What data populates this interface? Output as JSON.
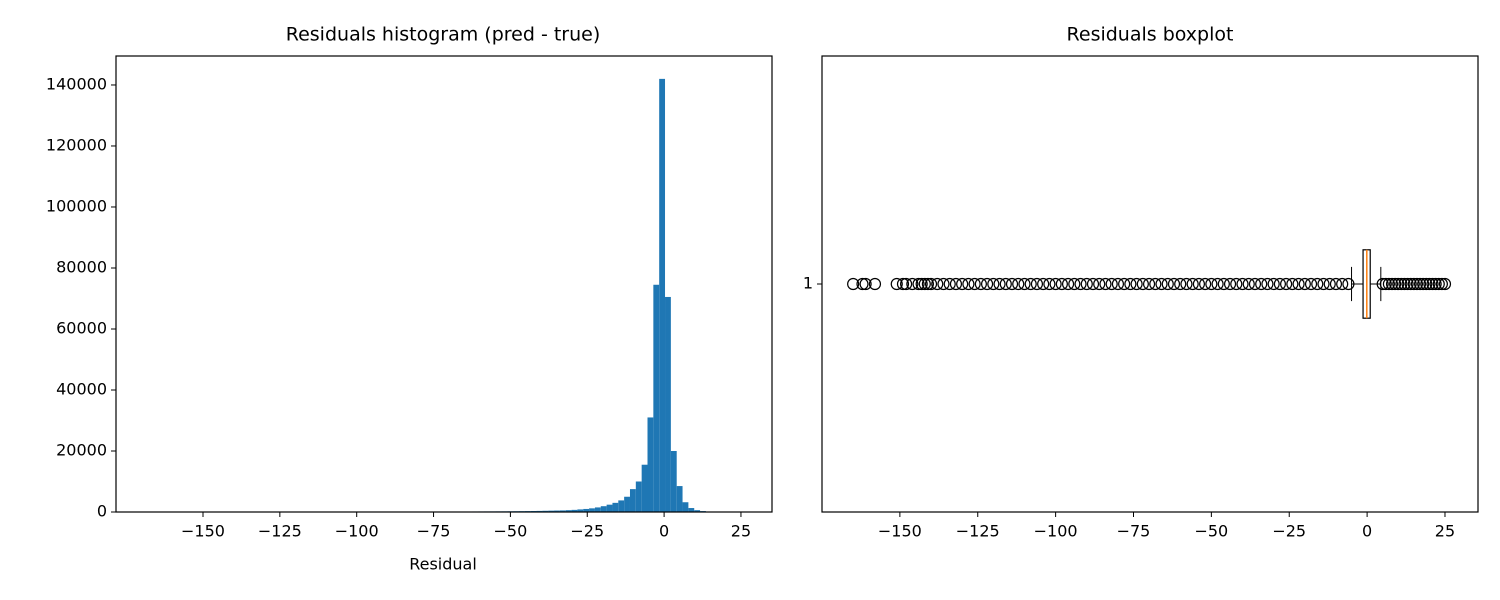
{
  "chart_data": [
    {
      "type": "histogram",
      "title": "Residuals histogram (pred - true)",
      "x_label": "Residual",
      "color": "#1f77b4",
      "bins": [
        -165,
        -163.1,
        -161.2,
        -159.3,
        -157.4,
        -155.5,
        -153.6,
        -151.7,
        -149.8,
        -147.9,
        -146,
        -144.1,
        -142.2,
        -140.3,
        -138.4,
        -136.5,
        -134.6,
        -132.7,
        -130.8,
        -128.9,
        -127,
        -125.1,
        -123.2,
        -121.3,
        -119.4,
        -117.5,
        -115.6,
        -113.7,
        -111.8,
        -109.9,
        -108,
        -106.1,
        -104.2,
        -102.3,
        -100.4,
        -98.5,
        -96.6,
        -94.7,
        -92.8,
        -90.9,
        -89,
        -87.1,
        -85.2,
        -83.3,
        -81.4,
        -79.5,
        -77.6,
        -75.7,
        -73.8,
        -71.9,
        -70,
        -68.1,
        -66.2,
        -64.3,
        -62.4,
        -60.5,
        -58.6,
        -56.7,
        -54.8,
        -52.9,
        -51,
        -49.1,
        -47.2,
        -45.3,
        -43.4,
        -41.5,
        -39.6,
        -37.7,
        -35.8,
        -33.9,
        -32,
        -30.1,
        -28.2,
        -26.3,
        -24.4,
        -22.5,
        -20.6,
        -18.7,
        -16.8,
        -14.9,
        -13,
        -11.1,
        -9.2,
        -7.3,
        -5.4,
        -3.5,
        -1.6,
        0.3,
        2.2,
        4.1,
        6,
        7.9,
        9.8,
        11.7,
        13.6,
        15.5,
        17.4,
        19.3,
        21.2,
        23.1,
        25
      ],
      "values": [
        2,
        0,
        3,
        0,
        1,
        2,
        3,
        8,
        10,
        12,
        10,
        15,
        18,
        20,
        25,
        30,
        28,
        32,
        35,
        38,
        40,
        42,
        45,
        48,
        50,
        52,
        55,
        58,
        60,
        62,
        65,
        68,
        70,
        72,
        75,
        78,
        80,
        82,
        85,
        88,
        90,
        95,
        100,
        105,
        110,
        115,
        120,
        125,
        130,
        135,
        140,
        145,
        150,
        160,
        170,
        180,
        190,
        200,
        210,
        220,
        240,
        260,
        280,
        300,
        330,
        360,
        400,
        440,
        480,
        520,
        600,
        700,
        850,
        1000,
        1200,
        1500,
        1900,
        2400,
        3000,
        3800,
        5000,
        7500,
        10000,
        15500,
        31000,
        74500,
        142000,
        70500,
        20000,
        8500,
        3200,
        1300,
        600,
        300,
        150,
        80,
        40,
        20,
        10,
        5
      ],
      "xlim": [
        -178.3,
        35.1
      ],
      "ylim": [
        0,
        149500
      ],
      "xticks": [
        {
          "value": -150,
          "label": "−150"
        },
        {
          "value": -125,
          "label": "−125"
        },
        {
          "value": -100,
          "label": "−100"
        },
        {
          "value": -75,
          "label": "−75"
        },
        {
          "value": -50,
          "label": "−50"
        },
        {
          "value": -25,
          "label": "−25"
        },
        0,
        25
      ],
      "yticks": [
        0,
        20000,
        40000,
        60000,
        80000,
        100000,
        120000,
        140000
      ]
    },
    {
      "type": "box",
      "title": "Residuals boxplot",
      "categories": [
        "1"
      ],
      "box_color": "#000000",
      "median_color": "#ff7f0e",
      "whislo": [
        -5.0
      ],
      "q1": [
        -1.3
      ],
      "median": [
        -0.1
      ],
      "q3": [
        1.0
      ],
      "whishi": [
        4.4
      ],
      "fliers": [
        [
          -165,
          -162,
          -161,
          -158,
          -151,
          -149,
          -148,
          -146,
          -144,
          -143,
          -142,
          -141,
          -140,
          -138,
          -136,
          -134,
          -132,
          -130,
          -128,
          -126,
          -124,
          -122,
          -120,
          -118,
          -116,
          -114,
          -112,
          -110,
          -108,
          -106,
          -104,
          -102,
          -100,
          -98,
          -96,
          -94,
          -92,
          -90,
          -88,
          -86,
          -84,
          -82,
          -80,
          -78,
          -76,
          -74,
          -72,
          -70,
          -68,
          -66,
          -64,
          -62,
          -60,
          -58,
          -56,
          -54,
          -52,
          -50,
          -48,
          -46,
          -44,
          -42,
          -40,
          -38,
          -36,
          -34,
          -32,
          -30,
          -28,
          -26,
          -24,
          -22,
          -20,
          -18,
          -16,
          -14,
          -12,
          -10,
          -8,
          -6,
          5,
          6,
          7,
          8,
          9,
          10,
          11,
          12,
          13,
          14,
          15,
          16,
          17,
          18,
          19,
          20,
          21,
          22,
          23,
          24,
          25
        ]
      ],
      "xlim": [
        -175.0,
        35.6
      ],
      "ylim": [
        0.5,
        1.5
      ],
      "xticks": [
        {
          "value": -150,
          "label": "−150"
        },
        {
          "value": -125,
          "label": "−125"
        },
        {
          "value": -100,
          "label": "−100"
        },
        {
          "value": -75,
          "label": "−75"
        },
        {
          "value": -50,
          "label": "−50"
        },
        {
          "value": -25,
          "label": "−25"
        },
        0,
        25
      ]
    }
  ]
}
